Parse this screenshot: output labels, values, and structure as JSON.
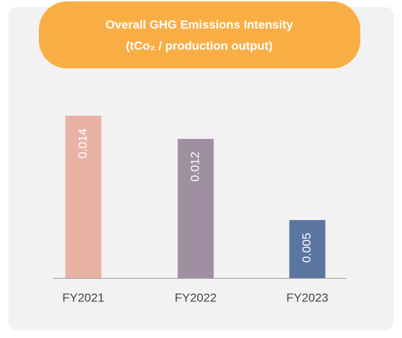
{
  "chart_data": {
    "type": "bar",
    "title": "Overall GHG Emissions Intensity",
    "subtitle": "(tCo₂ / production output)",
    "categories": [
      "FY2021",
      "FY2022",
      "FY2023"
    ],
    "values": [
      0.014,
      0.012,
      0.005
    ],
    "colors": [
      "#e8b3a4",
      "#a08ea3",
      "#5a75a0"
    ]
  }
}
